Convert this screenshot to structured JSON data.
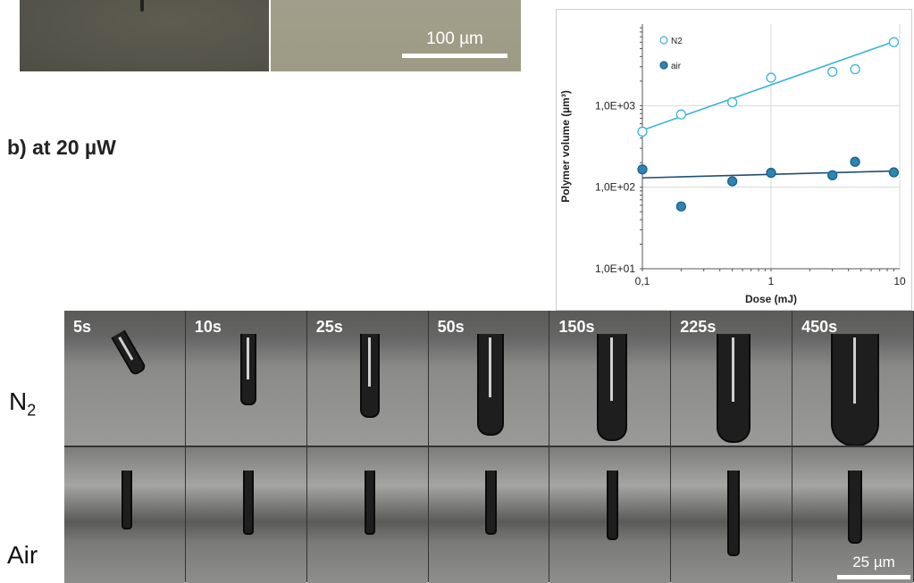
{
  "top": {
    "scalebar_label": "100 µm"
  },
  "section_b_label": "b) at 20 µW",
  "row_labels": {
    "n2": "N",
    "n2_sub": "2",
    "air": "Air"
  },
  "frame_times": [
    "5s",
    "10s",
    "25s",
    "50s",
    "150s",
    "225s",
    "450s"
  ],
  "bottom": {
    "scalebar_label": "25 µm"
  },
  "chart_data": {
    "type": "scatter",
    "xlabel": "Dose (mJ)",
    "ylabel": "Polymer volume (µm³)",
    "xscale": "log",
    "yscale": "log",
    "xlim": [
      0.1,
      10
    ],
    "ylim": [
      10,
      10000
    ],
    "xticks": [
      0.1,
      1,
      10
    ],
    "xtick_labels": [
      "0,1",
      "1",
      "10"
    ],
    "yticks": [
      10,
      100,
      1000
    ],
    "ytick_labels": [
      "1,0E+01",
      "1,0E+02",
      "1,0E+03"
    ],
    "grid": true,
    "legend_position": "top-left",
    "series": [
      {
        "name": "N2",
        "marker": "open-circle",
        "color": "#3bb3d6",
        "x": [
          0.1,
          0.2,
          0.5,
          1.0,
          3.0,
          4.5,
          9.0
        ],
        "y": [
          480,
          780,
          1100,
          2200,
          2600,
          2800,
          6000
        ],
        "trend": [
          [
            0.1,
            500
          ],
          [
            9.0,
            6100
          ]
        ]
      },
      {
        "name": "air",
        "marker": "filled-circle",
        "color": "#2b86b3",
        "x": [
          0.1,
          0.2,
          0.5,
          1.0,
          3.0,
          4.5,
          9.0
        ],
        "y": [
          165,
          58,
          118,
          150,
          140,
          205,
          152
        ],
        "trend": [
          [
            0.1,
            130
          ],
          [
            9.0,
            158
          ]
        ]
      }
    ]
  }
}
